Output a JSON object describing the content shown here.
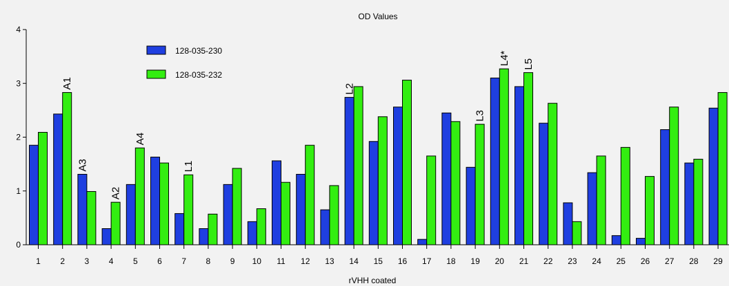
{
  "chart_data": {
    "type": "bar",
    "title": "OD Values",
    "xlabel": "rVHH coated",
    "ylabel": "",
    "ylim": [
      0,
      4
    ],
    "yticks": [
      0,
      1,
      2,
      3,
      4
    ],
    "legend_position": "top-left",
    "categories": [
      "1",
      "2",
      "3",
      "4",
      "5",
      "6",
      "7",
      "8",
      "9",
      "10",
      "11",
      "12",
      "13",
      "14",
      "15",
      "16",
      "17",
      "18",
      "19",
      "20",
      "21",
      "22",
      "23",
      "24",
      "25",
      "26",
      "27",
      "28",
      "29"
    ],
    "series": [
      {
        "name": "128-035-230",
        "color": "#1f3fe0",
        "values": [
          1.85,
          2.43,
          1.31,
          0.3,
          1.12,
          1.63,
          0.58,
          0.3,
          1.12,
          0.43,
          1.56,
          1.31,
          0.65,
          2.74,
          1.92,
          2.56,
          0.1,
          2.45,
          1.44,
          3.1,
          2.94,
          2.26,
          0.78,
          1.34,
          0.17,
          0.12,
          2.14,
          1.52,
          2.54
        ]
      },
      {
        "name": "128-035-232",
        "color": "#33ee11",
        "values": [
          2.09,
          2.83,
          0.99,
          0.79,
          1.8,
          1.52,
          1.3,
          0.57,
          1.42,
          0.67,
          1.16,
          1.85,
          1.1,
          2.94,
          2.38,
          3.06,
          1.65,
          2.29,
          2.24,
          3.27,
          3.2,
          2.63,
          0.43,
          1.65,
          1.81,
          1.27,
          2.56,
          1.59,
          2.83
        ]
      }
    ],
    "annotations": [
      {
        "text": "A1",
        "category_index": 1,
        "series_index": 1
      },
      {
        "text": "A3",
        "category_index": 2,
        "series_index": 0
      },
      {
        "text": "A2",
        "category_index": 3,
        "series_index": 1
      },
      {
        "text": "A4",
        "category_index": 4,
        "series_index": 1
      },
      {
        "text": "L1",
        "category_index": 6,
        "series_index": 1
      },
      {
        "text": "L2",
        "category_index": 13,
        "series_index": 0
      },
      {
        "text": "L3",
        "category_index": 18,
        "series_index": 1
      },
      {
        "text": "L4*",
        "category_index": 19,
        "series_index": 1
      },
      {
        "text": "L5",
        "category_index": 20,
        "series_index": 1
      }
    ]
  }
}
